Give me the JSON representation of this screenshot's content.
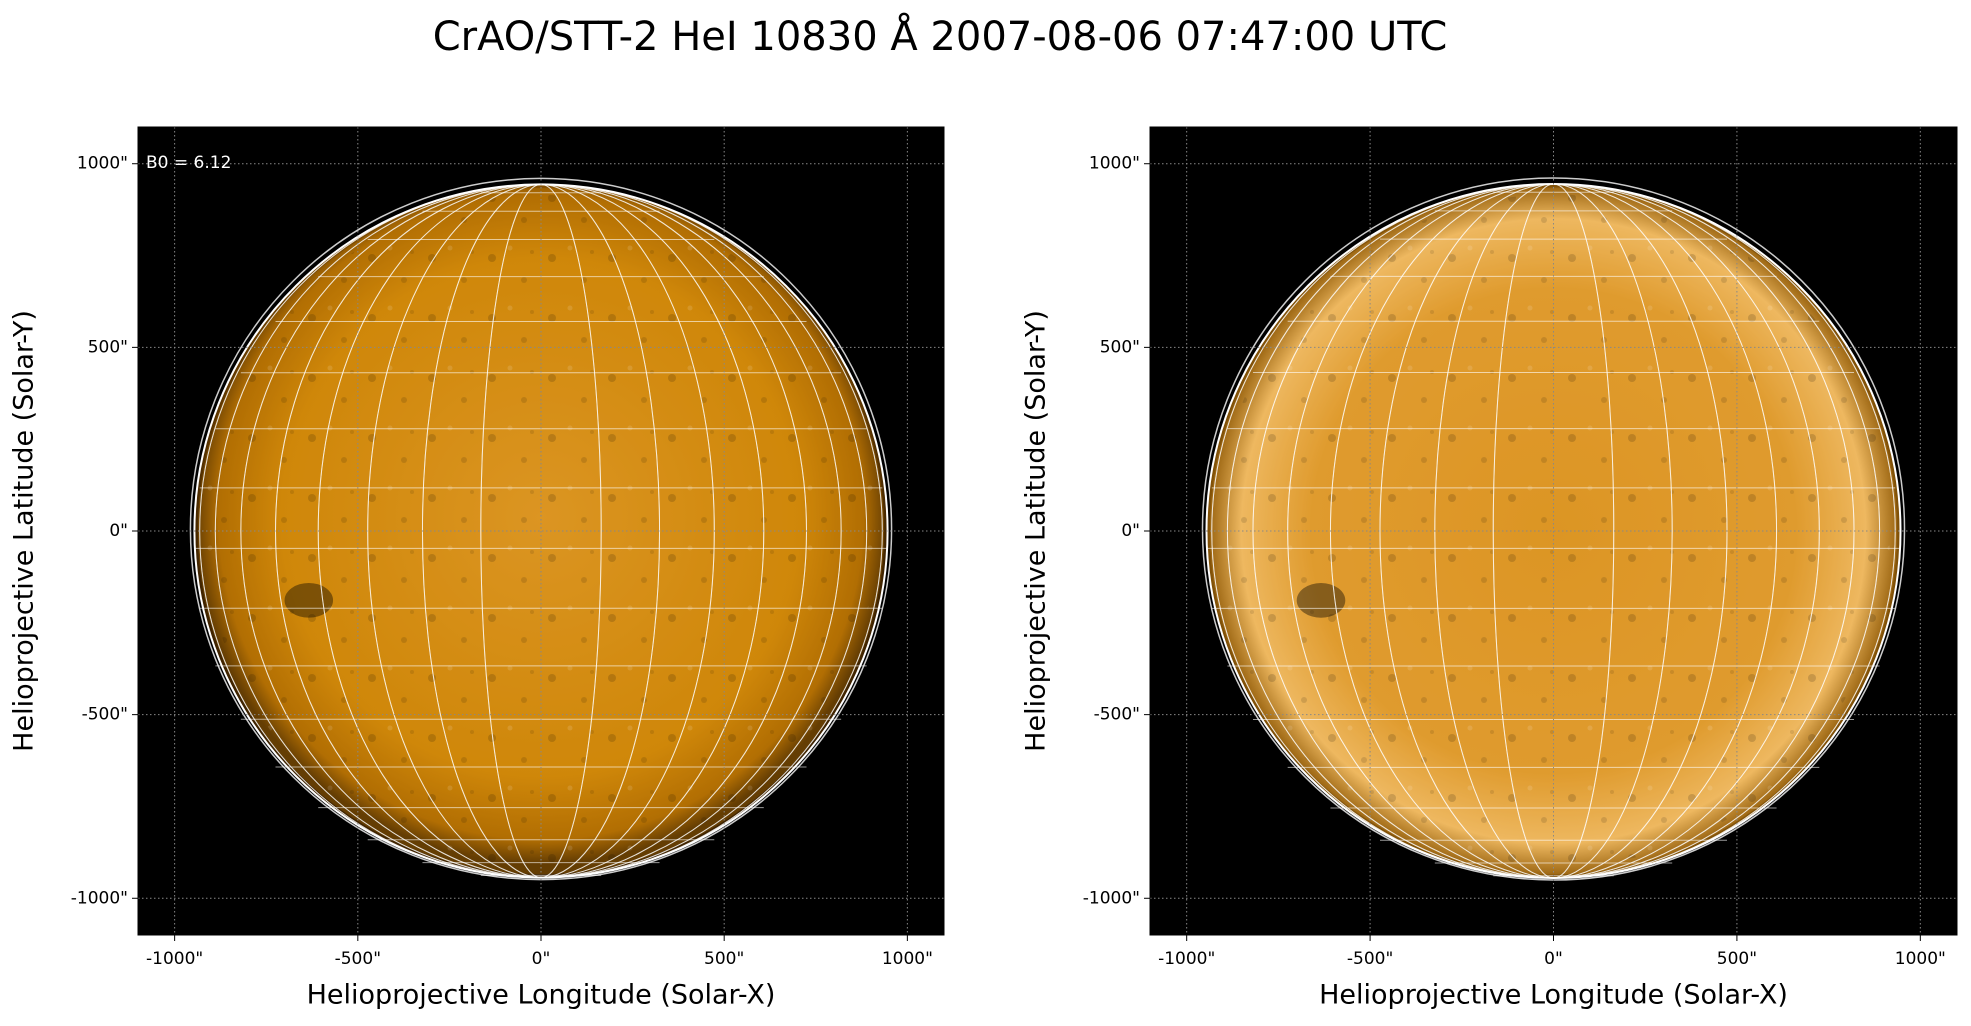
{
  "title": "CrAO/STT-2 HeI 10830 Å 2007-08-06 07:47:00 UTC",
  "chart_data": [
    {
      "type": "image",
      "xlabel": "Helioprojective Longitude (Solar-X)",
      "ylabel": "Helioprojective Latitude (Solar-Y)",
      "annotation": "B0 = 6.12",
      "xlim": [
        -1100,
        1100
      ],
      "ylim": [
        -1100,
        1100
      ],
      "xticks": [
        {
          "value": -1000,
          "label": "-1000\""
        },
        {
          "value": -500,
          "label": "-500\""
        },
        {
          "value": 0,
          "label": "0\""
        },
        {
          "value": 500,
          "label": "500\""
        },
        {
          "value": 1000,
          "label": "1000\""
        }
      ],
      "yticks": [
        {
          "value": -1000,
          "label": "-1000\""
        },
        {
          "value": -500,
          "label": "-500\""
        },
        {
          "value": 0,
          "label": "0\""
        },
        {
          "value": 500,
          "label": "500\""
        },
        {
          "value": 1000,
          "label": "1000\""
        }
      ],
      "grid": true,
      "color": "#d0870c"
    },
    {
      "type": "image",
      "xlabel": "Helioprojective Longitude (Solar-X)",
      "ylabel": "Helioprojective Latitude (Solar-Y)",
      "xlim": [
        -1100,
        1100
      ],
      "ylim": [
        -1100,
        1100
      ],
      "xticks": [
        {
          "value": -1000,
          "label": "-1000\""
        },
        {
          "value": -500,
          "label": "-500\""
        },
        {
          "value": 0,
          "label": "0\""
        },
        {
          "value": 500,
          "label": "500\""
        },
        {
          "value": 1000,
          "label": "1000\""
        }
      ],
      "yticks": [
        {
          "value": -1000,
          "label": "-1000\""
        },
        {
          "value": -500,
          "label": "-500\""
        },
        {
          "value": 0,
          "label": "0\""
        },
        {
          "value": 500,
          "label": "500\""
        },
        {
          "value": 1000,
          "label": "1000\""
        }
      ],
      "grid": true,
      "color": "#e8a030"
    }
  ]
}
